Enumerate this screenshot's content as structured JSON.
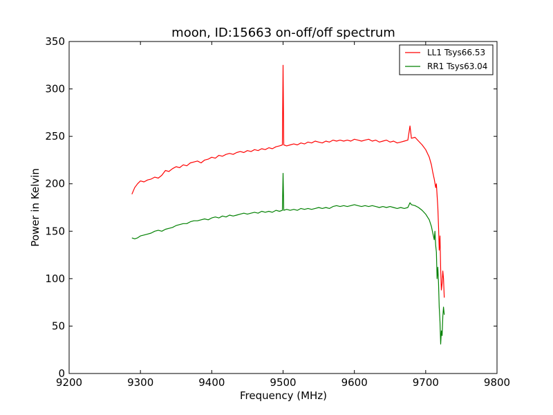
{
  "chart_data": {
    "type": "line",
    "title": "moon, ID:15663 on-off/off spectrum",
    "xlabel": "Frequency (MHz)",
    "ylabel": "Power in Kelvin",
    "xlim": [
      9200,
      9800
    ],
    "ylim": [
      0,
      350
    ],
    "xticks": [
      9200,
      9300,
      9400,
      9500,
      9600,
      9700,
      9800
    ],
    "yticks": [
      0,
      50,
      100,
      150,
      200,
      250,
      300,
      350
    ],
    "grid": false,
    "legend_position": "top-right",
    "series": [
      {
        "name": "LL1 Tsys66.53",
        "color": "#ff0000",
        "points": [
          [
            9288,
            189
          ],
          [
            9292,
            196
          ],
          [
            9296,
            200
          ],
          [
            9300,
            203
          ],
          [
            9305,
            202
          ],
          [
            9310,
            204
          ],
          [
            9315,
            205
          ],
          [
            9320,
            207
          ],
          [
            9325,
            206
          ],
          [
            9330,
            209
          ],
          [
            9335,
            214
          ],
          [
            9340,
            213
          ],
          [
            9345,
            216
          ],
          [
            9350,
            218
          ],
          [
            9355,
            217
          ],
          [
            9360,
            220
          ],
          [
            9365,
            219
          ],
          [
            9370,
            222
          ],
          [
            9375,
            223
          ],
          [
            9380,
            224
          ],
          [
            9385,
            222
          ],
          [
            9390,
            225
          ],
          [
            9395,
            226
          ],
          [
            9400,
            228
          ],
          [
            9405,
            227
          ],
          [
            9410,
            230
          ],
          [
            9415,
            229
          ],
          [
            9420,
            231
          ],
          [
            9425,
            232
          ],
          [
            9430,
            231
          ],
          [
            9435,
            233
          ],
          [
            9440,
            234
          ],
          [
            9445,
            233
          ],
          [
            9450,
            235
          ],
          [
            9455,
            234
          ],
          [
            9460,
            236
          ],
          [
            9465,
            235
          ],
          [
            9470,
            237
          ],
          [
            9475,
            236
          ],
          [
            9480,
            238
          ],
          [
            9485,
            237
          ],
          [
            9490,
            239
          ],
          [
            9495,
            240
          ],
          [
            9499,
            241
          ],
          [
            9500,
            325
          ],
          [
            9501,
            241
          ],
          [
            9505,
            240
          ],
          [
            9510,
            241
          ],
          [
            9515,
            242
          ],
          [
            9520,
            241
          ],
          [
            9525,
            243
          ],
          [
            9530,
            242
          ],
          [
            9535,
            244
          ],
          [
            9540,
            243
          ],
          [
            9545,
            245
          ],
          [
            9550,
            244
          ],
          [
            9555,
            243
          ],
          [
            9560,
            245
          ],
          [
            9565,
            244
          ],
          [
            9570,
            246
          ],
          [
            9575,
            245
          ],
          [
            9580,
            246
          ],
          [
            9585,
            245
          ],
          [
            9590,
            246
          ],
          [
            9595,
            245
          ],
          [
            9600,
            247
          ],
          [
            9605,
            246
          ],
          [
            9610,
            245
          ],
          [
            9615,
            246
          ],
          [
            9620,
            247
          ],
          [
            9625,
            245
          ],
          [
            9630,
            246
          ],
          [
            9635,
            244
          ],
          [
            9640,
            245
          ],
          [
            9645,
            246
          ],
          [
            9650,
            244
          ],
          [
            9655,
            245
          ],
          [
            9660,
            243
          ],
          [
            9665,
            244
          ],
          [
            9670,
            245
          ],
          [
            9675,
            246
          ],
          [
            9678,
            261
          ],
          [
            9680,
            248
          ],
          [
            9685,
            249
          ],
          [
            9690,
            245
          ],
          [
            9695,
            241
          ],
          [
            9700,
            236
          ],
          [
            9705,
            228
          ],
          [
            9708,
            220
          ],
          [
            9710,
            212
          ],
          [
            9712,
            205
          ],
          [
            9714,
            196
          ],
          [
            9715,
            200
          ],
          [
            9716,
            188
          ],
          [
            9717,
            175
          ],
          [
            9718,
            155
          ],
          [
            9719,
            130
          ],
          [
            9720,
            145
          ],
          [
            9721,
            110
          ],
          [
            9722,
            88
          ],
          [
            9723,
            95
          ],
          [
            9724,
            108
          ],
          [
            9725,
            100
          ],
          [
            9726,
            80
          ]
        ]
      },
      {
        "name": "RR1 Tsys63.04",
        "color": "#008000",
        "points": [
          [
            9288,
            143
          ],
          [
            9292,
            142
          ],
          [
            9296,
            143
          ],
          [
            9300,
            145
          ],
          [
            9305,
            146
          ],
          [
            9310,
            147
          ],
          [
            9315,
            148
          ],
          [
            9320,
            150
          ],
          [
            9325,
            151
          ],
          [
            9330,
            150
          ],
          [
            9335,
            152
          ],
          [
            9340,
            153
          ],
          [
            9345,
            154
          ],
          [
            9350,
            156
          ],
          [
            9355,
            157
          ],
          [
            9360,
            158
          ],
          [
            9365,
            158
          ],
          [
            9370,
            160
          ],
          [
            9375,
            161
          ],
          [
            9380,
            161
          ],
          [
            9385,
            162
          ],
          [
            9390,
            163
          ],
          [
            9395,
            162
          ],
          [
            9400,
            164
          ],
          [
            9405,
            165
          ],
          [
            9410,
            164
          ],
          [
            9415,
            166
          ],
          [
            9420,
            165
          ],
          [
            9425,
            167
          ],
          [
            9430,
            166
          ],
          [
            9435,
            167
          ],
          [
            9440,
            168
          ],
          [
            9445,
            169
          ],
          [
            9450,
            168
          ],
          [
            9455,
            169
          ],
          [
            9460,
            170
          ],
          [
            9465,
            169
          ],
          [
            9470,
            171
          ],
          [
            9475,
            170
          ],
          [
            9480,
            171
          ],
          [
            9485,
            170
          ],
          [
            9490,
            172
          ],
          [
            9495,
            171
          ],
          [
            9499,
            172
          ],
          [
            9500,
            211
          ],
          [
            9501,
            172
          ],
          [
            9505,
            173
          ],
          [
            9510,
            172
          ],
          [
            9515,
            173
          ],
          [
            9520,
            172
          ],
          [
            9525,
            174
          ],
          [
            9530,
            173
          ],
          [
            9535,
            174
          ],
          [
            9540,
            173
          ],
          [
            9545,
            174
          ],
          [
            9550,
            175
          ],
          [
            9555,
            174
          ],
          [
            9560,
            175
          ],
          [
            9565,
            174
          ],
          [
            9570,
            176
          ],
          [
            9575,
            177
          ],
          [
            9580,
            176
          ],
          [
            9585,
            177
          ],
          [
            9590,
            176
          ],
          [
            9595,
            177
          ],
          [
            9600,
            178
          ],
          [
            9605,
            177
          ],
          [
            9610,
            176
          ],
          [
            9615,
            177
          ],
          [
            9620,
            176
          ],
          [
            9625,
            177
          ],
          [
            9630,
            176
          ],
          [
            9635,
            175
          ],
          [
            9640,
            176
          ],
          [
            9645,
            175
          ],
          [
            9650,
            176
          ],
          [
            9655,
            175
          ],
          [
            9660,
            174
          ],
          [
            9665,
            175
          ],
          [
            9670,
            174
          ],
          [
            9675,
            175
          ],
          [
            9678,
            180
          ],
          [
            9680,
            178
          ],
          [
            9685,
            177
          ],
          [
            9690,
            175
          ],
          [
            9695,
            172
          ],
          [
            9700,
            168
          ],
          [
            9705,
            162
          ],
          [
            9708,
            155
          ],
          [
            9710,
            148
          ],
          [
            9712,
            141
          ],
          [
            9713,
            150
          ],
          [
            9714,
            135
          ],
          [
            9715,
            128
          ],
          [
            9716,
            100
          ],
          [
            9717,
            112
          ],
          [
            9718,
            95
          ],
          [
            9719,
            70
          ],
          [
            9720,
            55
          ],
          [
            9721,
            31
          ],
          [
            9722,
            45
          ],
          [
            9723,
            40
          ],
          [
            9724,
            60
          ],
          [
            9725,
            70
          ],
          [
            9726,
            62
          ]
        ]
      }
    ]
  }
}
